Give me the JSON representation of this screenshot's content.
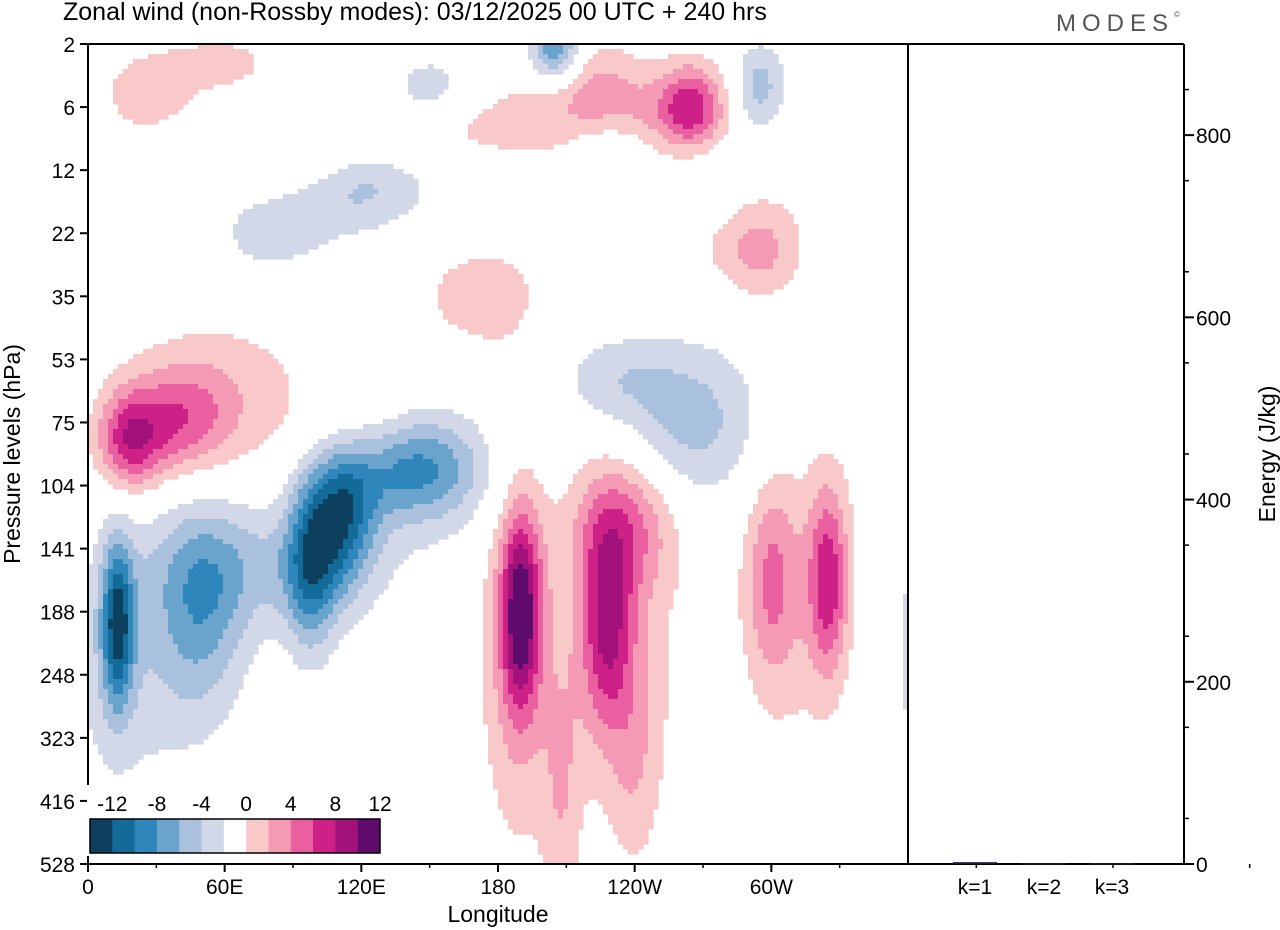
{
  "title": "Zonal wind (non-Rossby modes):  03/12/2025  00 UTC  + 240 hrs",
  "logo": "MODES",
  "logo_mark": "©",
  "colors": {
    "neg": [
      "#0d3f5e",
      "#136b9a",
      "#2f86bb",
      "#6aa3cc",
      "#a9c1dd",
      "#d3d8e9"
    ],
    "zero": "#ffffff",
    "pos": [
      "#f9c9c9",
      "#f59ab5",
      "#ea5fa0",
      "#cd2187",
      "#a3127a",
      "#5e0b6b"
    ]
  },
  "chart_data": [
    {
      "type": "heatmap",
      "title": "Zonal wind (non-Rossby modes)",
      "xlabel": "Longitude",
      "ylabel": "Pressure levels (hPa)",
      "x_ticks": [
        "0",
        "60E",
        "120E",
        "180",
        "120W",
        "60W"
      ],
      "y_ticks": [
        "2",
        "6",
        "12",
        "22",
        "35",
        "53",
        "75",
        "104",
        "141",
        "188",
        "248",
        "323",
        "416",
        "528"
      ],
      "colorbar": {
        "labels": [
          "-12",
          "-8",
          "-4",
          "0",
          "4",
          "8",
          "12"
        ],
        "levels": [
          -14,
          -12,
          -10,
          -8,
          -6,
          -4,
          -2,
          2,
          4,
          6,
          8,
          10,
          12,
          14
        ]
      },
      "blobs": [
        {
          "lon": 13,
          "lev": 9.2,
          "slon": 5,
          "slev": 0.9,
          "a": -11
        },
        {
          "lon": 50,
          "lev": 9.0,
          "slon": 14,
          "slev": 1.2,
          "a": -6
        },
        {
          "lon": 15,
          "lev": 9.8,
          "slon": 22,
          "slev": 1.6,
          "a": -3
        },
        {
          "lon": 98,
          "lev": 8.2,
          "slon": 8,
          "slev": 1.0,
          "a": -8
        },
        {
          "lon": 112,
          "lev": 7.4,
          "slon": 10,
          "slev": 0.8,
          "a": -9
        },
        {
          "lon": 140,
          "lev": 6.7,
          "slon": 20,
          "slev": 0.55,
          "a": -7
        },
        {
          "lon": 80,
          "lev": 8.3,
          "slon": 35,
          "slev": 0.7,
          "a": -4
        },
        {
          "lon": 150,
          "lev": 6.8,
          "slon": 30,
          "slev": 0.8,
          "a": -3
        },
        {
          "lon": 265,
          "lev": 6.0,
          "slon": 22,
          "slev": 0.9,
          "a": -5
        },
        {
          "lon": 230,
          "lev": 5.3,
          "slon": 18,
          "slev": 0.5,
          "a": -3
        },
        {
          "lon": 205,
          "lev": 0.1,
          "slon": 8,
          "slev": 0.4,
          "a": -9
        },
        {
          "lon": 295,
          "lev": 0.7,
          "slon": 8,
          "slev": 0.5,
          "a": -5
        },
        {
          "lon": 120,
          "lev": 2.2,
          "slon": 22,
          "slev": 0.55,
          "a": -5
        },
        {
          "lon": 80,
          "lev": 3.0,
          "slon": 18,
          "slev": 0.5,
          "a": -3
        },
        {
          "lon": 270,
          "lev": 2.1,
          "slon": 15,
          "slev": 0.6,
          "a": -3
        },
        {
          "lon": 150,
          "lev": 0.7,
          "slon": 12,
          "slev": 0.4,
          "a": -3
        },
        {
          "lon": 230,
          "lev": 1.5,
          "slon": 15,
          "slev": 0.3,
          "a": -2.5
        },
        {
          "lon": 190,
          "lev": 9.0,
          "slon": 6,
          "slev": 1.1,
          "a": 11
        },
        {
          "lon": 188,
          "lev": 9.5,
          "slon": 12,
          "slev": 2.4,
          "a": 4
        },
        {
          "lon": 228,
          "lev": 9.2,
          "slon": 8,
          "slev": 1.1,
          "a": 8
        },
        {
          "lon": 235,
          "lev": 7.6,
          "slon": 16,
          "slev": 0.8,
          "a": 6
        },
        {
          "lon": 232,
          "lev": 9.8,
          "slon": 20,
          "slev": 1.8,
          "a": 3
        },
        {
          "lon": 208,
          "lev": 12.0,
          "slon": 6,
          "slev": 1.4,
          "a": 3
        },
        {
          "lon": 240,
          "lev": 11.5,
          "slon": 8,
          "slev": 1.2,
          "a": 2.5
        },
        {
          "lon": 325,
          "lev": 8.5,
          "slon": 6,
          "slev": 1.0,
          "a": 8
        },
        {
          "lon": 300,
          "lev": 8.5,
          "slon": 8,
          "slev": 1.1,
          "a": 5
        },
        {
          "lon": 315,
          "lev": 8.8,
          "slon": 20,
          "slev": 2.0,
          "a": 2.5
        },
        {
          "lon": 18,
          "lev": 6.3,
          "slon": 10,
          "slev": 0.55,
          "a": 8
        },
        {
          "lon": 40,
          "lev": 6.0,
          "slon": 16,
          "slev": 0.6,
          "a": 6
        },
        {
          "lon": 60,
          "lev": 5.5,
          "slon": 30,
          "slev": 0.9,
          "a": 3
        },
        {
          "lon": 120,
          "lev": 6.3,
          "slon": 20,
          "slev": 0.55,
          "a": 3
        },
        {
          "lon": 170,
          "lev": 4.0,
          "slon": 25,
          "slev": 0.8,
          "a": 2.5
        },
        {
          "lon": 265,
          "lev": 1.0,
          "slon": 10,
          "slev": 0.5,
          "a": 8
        },
        {
          "lon": 245,
          "lev": 1.2,
          "slon": 25,
          "slev": 0.4,
          "a": 3
        },
        {
          "lon": 220,
          "lev": 0.6,
          "slon": 20,
          "slev": 0.5,
          "a": 4
        },
        {
          "lon": 95,
          "lev": 1.8,
          "slon": 25,
          "slev": 0.4,
          "a": 3
        },
        {
          "lon": 295,
          "lev": 3.3,
          "slon": 12,
          "slev": 0.5,
          "a": 4
        },
        {
          "lon": 260,
          "lev": 2.6,
          "slon": 35,
          "slev": 0.8,
          "a": 2.5
        },
        {
          "lon": 25,
          "lev": 0.8,
          "slon": 15,
          "slev": 0.5,
          "a": 3
        },
        {
          "lon": 60,
          "lev": 0.3,
          "slon": 20,
          "slev": 0.4,
          "a": 2.5
        },
        {
          "lon": 185,
          "lev": 1.3,
          "slon": 25,
          "slev": 0.4,
          "a": 2.5
        },
        {
          "lon": 140,
          "lev": 1.5,
          "slon": 15,
          "slev": 0.3,
          "a": 2.5
        }
      ]
    },
    {
      "type": "bar",
      "ylabel": "Energy (J/kg)",
      "categories": [
        "k=1",
        "k=2",
        "k=3"
      ],
      "values": [
        2,
        1,
        1
      ],
      "ylim": [
        0,
        900
      ],
      "y_ticks": [
        "0",
        "200",
        "400",
        "600",
        "800"
      ]
    }
  ]
}
